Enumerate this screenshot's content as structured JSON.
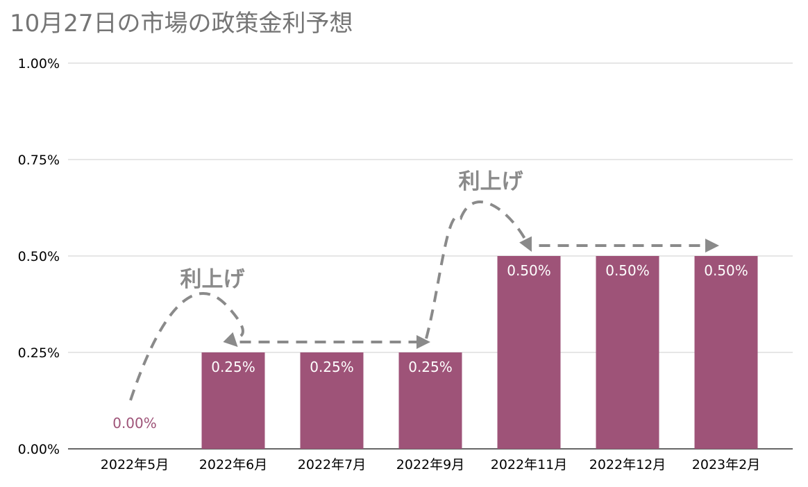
{
  "chart_data": {
    "type": "bar",
    "title": "10月27日の市場の政策金利予想",
    "categories": [
      "2022年5月",
      "2022年6月",
      "2022年7月",
      "2022年9月",
      "2022年11月",
      "2022年12月",
      "2023年2月"
    ],
    "values": [
      0.0,
      0.25,
      0.25,
      0.25,
      0.5,
      0.5,
      0.5
    ],
    "data_labels": [
      "0.00%",
      "0.25%",
      "0.25%",
      "0.25%",
      "0.50%",
      "0.50%",
      "0.50%"
    ],
    "ylim": [
      0,
      1.0
    ],
    "yticks": [
      0,
      0.25,
      0.5,
      0.75,
      1.0
    ],
    "ytick_labels": [
      "0.00%",
      "0.25%",
      "0.50%",
      "0.75%",
      "1.00%"
    ],
    "grid": true,
    "bar_color": "#9e5378",
    "annotations": [
      {
        "text": "利上げ",
        "category": "2022年6月"
      },
      {
        "text": "利上げ",
        "category": "2022年11月"
      }
    ],
    "annotation_color": "#8a8a8a"
  }
}
